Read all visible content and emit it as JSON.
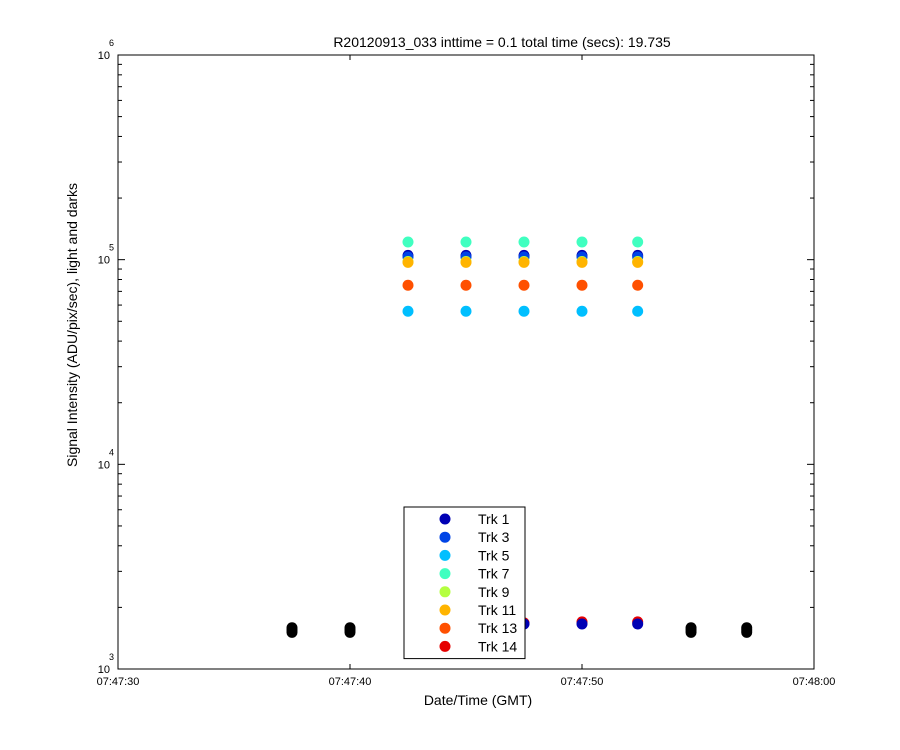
{
  "chart_data": {
    "type": "scatter",
    "title": "R20120913_033 inttime = 0.1 total time (secs): 19.735",
    "xlabel": "Date/Time (GMT)",
    "ylabel": "Signal Intensity (ADU/pix/sec), light and darks",
    "y_scale": "log",
    "ylim": [
      1000,
      1000000
    ],
    "xlim": [
      "07:47:30",
      "07:48:00"
    ],
    "x_ticks": [
      "07:47:30",
      "07:47:40",
      "07:47:50",
      "07:48:00"
    ],
    "y_ticks": [
      {
        "base": "10",
        "exp": "3"
      },
      {
        "base": "10",
        "exp": "4"
      },
      {
        "base": "10",
        "exp": "5"
      },
      {
        "base": "10",
        "exp": "6"
      }
    ],
    "legend_position": "bottom-center",
    "series": [
      {
        "name": "Trk 1",
        "color": "#0000b4",
        "x": [
          "07:47:42.5",
          "07:47:45",
          "07:47:47.5",
          "07:47:50",
          "07:47:52.4"
        ],
        "y": [
          105000,
          105000,
          105000,
          105000,
          105000
        ]
      },
      {
        "name": "Trk 3",
        "color": "#0044e6",
        "x": [
          "07:47:42.5",
          "07:47:45",
          "07:47:47.5",
          "07:47:50",
          "07:47:52.4"
        ],
        "y": [
          103000,
          103000,
          103000,
          103000,
          103000
        ]
      },
      {
        "name": "Trk 5",
        "color": "#00bfff",
        "x": [
          "07:47:42.5",
          "07:47:45",
          "07:47:47.5",
          "07:47:50",
          "07:47:52.4"
        ],
        "y": [
          56000,
          56000,
          56000,
          56000,
          56000
        ]
      },
      {
        "name": "Trk 7",
        "color": "#40ffc0",
        "x": [
          "07:47:42.5",
          "07:47:45",
          "07:47:47.5",
          "07:47:50",
          "07:47:52.4"
        ],
        "y": [
          122000,
          122000,
          122000,
          122000,
          122000
        ]
      },
      {
        "name": "Trk 9",
        "color": "#b4ff40",
        "x": [
          "07:47:42.5",
          "07:47:45",
          "07:47:47.5",
          "07:47:50",
          "07:47:52.4"
        ],
        "y": [
          98000,
          98000,
          98000,
          98000,
          98000
        ]
      },
      {
        "name": "Trk 11",
        "color": "#ffb400",
        "x": [
          "07:47:42.5",
          "07:47:45",
          "07:47:47.5",
          "07:47:50",
          "07:47:52.4"
        ],
        "y": [
          97000,
          97000,
          97000,
          97000,
          97000
        ]
      },
      {
        "name": "Trk 13",
        "color": "#ff5000",
        "x": [
          "07:47:42.5",
          "07:47:45",
          "07:47:47.5",
          "07:47:50",
          "07:47:52.4"
        ],
        "y": [
          75000,
          75000,
          75000,
          75000,
          75000
        ]
      },
      {
        "name": "Trk 14",
        "color": "#e60000",
        "x": [
          "07:47:47.5",
          "07:47:50",
          "07:47:52.4"
        ],
        "y": [
          1680,
          1700,
          1700
        ]
      },
      {
        "name": "",
        "color": "#0000b4",
        "x": [
          "07:47:47.5",
          "07:47:50",
          "07:47:52.4"
        ],
        "y": [
          1660,
          1660,
          1660
        ]
      },
      {
        "name": "",
        "color": "#000000",
        "x": [
          "07:47:37.5",
          "07:47:37.5",
          "07:47:37.5",
          "07:47:40",
          "07:47:40",
          "07:47:40",
          "07:47:54.7",
          "07:47:54.7",
          "07:47:54.7",
          "07:47:57.1",
          "07:47:57.1",
          "07:47:57.1"
        ],
        "y": [
          1510,
          1550,
          1590,
          1510,
          1550,
          1590,
          1510,
          1550,
          1590,
          1510,
          1550,
          1590
        ]
      }
    ]
  }
}
